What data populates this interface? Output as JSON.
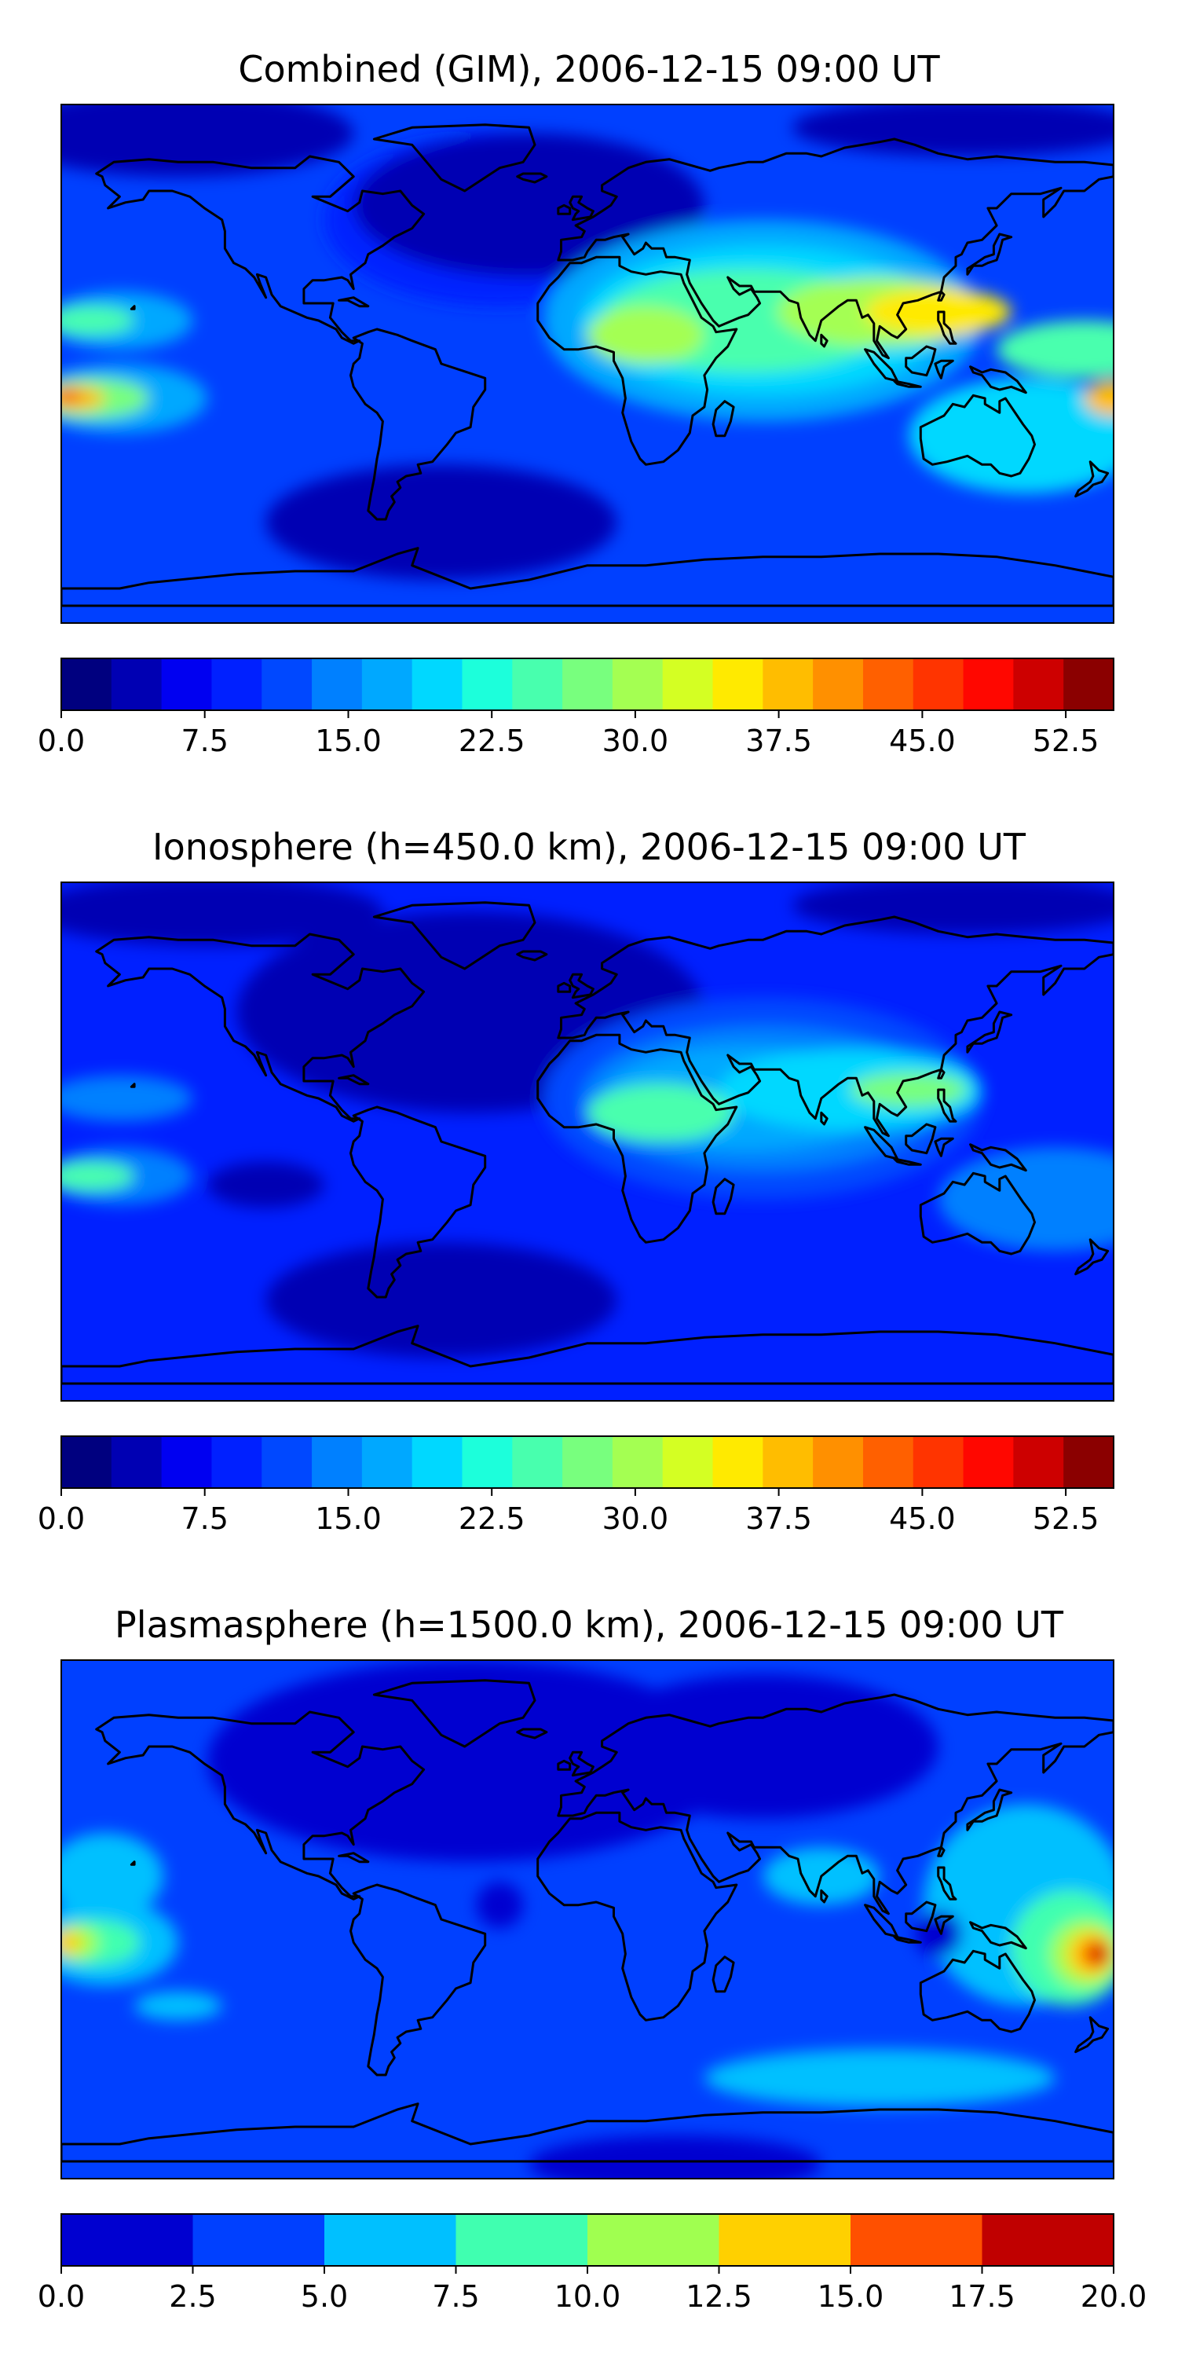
{
  "panels": [
    {
      "title": "Combined (GIM), 2006-12-15 09:00 UT",
      "colorbar": {
        "colors": [
          "#00007f",
          "#0000b3",
          "#0000f1",
          "#0020ff",
          "#0048ff",
          "#0080ff",
          "#00a8ff",
          "#00d8ff",
          "#1cffdb",
          "#48ffae",
          "#78ff7e",
          "#a4ff52",
          "#d4ff23",
          "#ffea00",
          "#ffbd00",
          "#ff9000",
          "#ff6000",
          "#ff3400",
          "#ff0700",
          "#cd0000",
          "#8b0000"
        ],
        "ticks": [
          "0.0",
          "7.5",
          "15.0",
          "22.5",
          "30.0",
          "37.5",
          "45.0",
          "52.5"
        ],
        "tick_values": [
          0,
          7.5,
          15,
          22.5,
          30,
          37.5,
          45,
          52.5
        ],
        "min": 0,
        "max": 55
      },
      "background_color": "#0040ff",
      "blobs": [
        {
          "color": "#0020ff",
          "lon": -30,
          "lat": 50,
          "rx": 60,
          "ry": 30
        },
        {
          "color": "#0000b3",
          "lon": -20,
          "lat": 55,
          "rx": 60,
          "ry": 25
        },
        {
          "color": "#0000b3",
          "lon": -140,
          "lat": 80,
          "rx": 60,
          "ry": 15
        },
        {
          "color": "#0000b3",
          "lon": 130,
          "lat": 82,
          "rx": 60,
          "ry": 10
        },
        {
          "color": "#0000b3",
          "lon": -50,
          "lat": -55,
          "rx": 60,
          "ry": 20
        },
        {
          "color": "#00a8ff",
          "lon": 60,
          "lat": 15,
          "rx": 75,
          "ry": 35
        },
        {
          "color": "#00d8ff",
          "lon": 60,
          "lat": 15,
          "rx": 62,
          "ry": 26
        },
        {
          "color": "#48ffae",
          "lon": 55,
          "lat": 15,
          "rx": 50,
          "ry": 18
        },
        {
          "color": "#a4ff52",
          "lon": 100,
          "lat": 18,
          "rx": 35,
          "ry": 12
        },
        {
          "color": "#ffea00",
          "lon": 120,
          "lat": 18,
          "rx": 25,
          "ry": 8
        },
        {
          "color": "#a4ff52",
          "lon": 20,
          "lat": 10,
          "rx": 20,
          "ry": 10
        },
        {
          "color": "#00d8ff",
          "lon": 150,
          "lat": -25,
          "rx": 40,
          "ry": 20
        },
        {
          "color": "#48ffae",
          "lon": 170,
          "lat": 5,
          "rx": 30,
          "ry": 10
        },
        {
          "color": "#ffbd00",
          "lon": 180,
          "lat": -12,
          "rx": 10,
          "ry": 6
        },
        {
          "color": "#00a8ff",
          "lon": -160,
          "lat": 15,
          "rx": 25,
          "ry": 10
        },
        {
          "color": "#48ffae",
          "lon": -170,
          "lat": 15,
          "rx": 15,
          "ry": 5
        },
        {
          "color": "#00a8ff",
          "lon": -160,
          "lat": -12,
          "rx": 30,
          "ry": 12
        },
        {
          "color": "#78ff7e",
          "lon": -170,
          "lat": -12,
          "rx": 20,
          "ry": 7
        },
        {
          "color": "#ffbd00",
          "lon": -175,
          "lat": -12,
          "rx": 10,
          "ry": 4
        },
        {
          "color": "#ff6000",
          "lon": -178,
          "lat": -11,
          "rx": 5,
          "ry": 3
        }
      ]
    },
    {
      "title": "Ionosphere  (h=450.0 km), 2006-12-15 09:00 UT",
      "colorbar": {
        "colors": [
          "#00007f",
          "#0000b3",
          "#0000f1",
          "#0020ff",
          "#0048ff",
          "#0080ff",
          "#00a8ff",
          "#00d8ff",
          "#1cffdb",
          "#48ffae",
          "#78ff7e",
          "#a4ff52",
          "#d4ff23",
          "#ffea00",
          "#ffbd00",
          "#ff9000",
          "#ff6000",
          "#ff3400",
          "#ff0700",
          "#cd0000",
          "#8b0000"
        ],
        "ticks": [
          "0.0",
          "7.5",
          "15.0",
          "22.5",
          "30.0",
          "37.5",
          "45.0",
          "52.5"
        ],
        "tick_values": [
          0,
          7.5,
          15,
          22.5,
          30,
          37.5,
          45,
          52.5
        ],
        "min": 0,
        "max": 55
      },
      "background_color": "#0020ff",
      "blobs": [
        {
          "color": "#0000b3",
          "lon": -40,
          "lat": 45,
          "rx": 80,
          "ry": 35
        },
        {
          "color": "#0000b3",
          "lon": -130,
          "lat": 80,
          "rx": 60,
          "ry": 12
        },
        {
          "color": "#0000b3",
          "lon": 130,
          "lat": 82,
          "rx": 60,
          "ry": 10
        },
        {
          "color": "#0000b3",
          "lon": -50,
          "lat": -55,
          "rx": 60,
          "ry": 20
        },
        {
          "color": "#0048ff",
          "lon": 60,
          "lat": 15,
          "rx": 75,
          "ry": 35
        },
        {
          "color": "#0080ff",
          "lon": 60,
          "lat": 15,
          "rx": 62,
          "ry": 25
        },
        {
          "color": "#00a8ff",
          "lon": 55,
          "lat": 15,
          "rx": 50,
          "ry": 18
        },
        {
          "color": "#00d8ff",
          "lon": 90,
          "lat": 18,
          "rx": 45,
          "ry": 14
        },
        {
          "color": "#48ffae",
          "lon": 25,
          "lat": 10,
          "rx": 25,
          "ry": 10
        },
        {
          "color": "#78ff7e",
          "lon": 110,
          "lat": 18,
          "rx": 20,
          "ry": 6
        },
        {
          "color": "#0080ff",
          "lon": 160,
          "lat": -20,
          "rx": 40,
          "ry": 18
        },
        {
          "color": "#1cffdb",
          "lon": -175,
          "lat": 15,
          "rx": 8,
          "ry": 4
        },
        {
          "color": "#0080ff",
          "lon": -160,
          "lat": 15,
          "rx": 25,
          "ry": 8
        },
        {
          "color": "#0080ff",
          "lon": -160,
          "lat": -12,
          "rx": 25,
          "ry": 10
        },
        {
          "color": "#48ffae",
          "lon": -170,
          "lat": -12,
          "rx": 15,
          "ry": 5
        },
        {
          "color": "#0000b3",
          "lon": -110,
          "lat": -15,
          "rx": 20,
          "ry": 8
        }
      ]
    },
    {
      "title": "Plasmasphere (h=1500.0 km), 2006-12-15 09:00 UT",
      "colorbar": {
        "colors": [
          "#0000d0",
          "#0040ff",
          "#00c0ff",
          "#40ffb0",
          "#a0ff50",
          "#ffd000",
          "#ff5000",
          "#c00000"
        ],
        "ticks": [
          "0.0",
          "2.5",
          "5.0",
          "7.5",
          "10.0",
          "12.5",
          "15.0",
          "17.5",
          "20.0"
        ],
        "tick_values": [
          0,
          2.5,
          5,
          7.5,
          10,
          12.5,
          15,
          17.5,
          20
        ],
        "min": 0,
        "max": 20
      },
      "background_color": "#0040ff",
      "blobs": [
        {
          "color": "#0000d0",
          "lon": -40,
          "lat": 55,
          "rx": 90,
          "ry": 35
        },
        {
          "color": "#0000d0",
          "lon": 60,
          "lat": 60,
          "rx": 60,
          "ry": 25
        },
        {
          "color": "#0000d0",
          "lon": 30,
          "lat": -85,
          "rx": 50,
          "ry": 10
        },
        {
          "color": "#00c0ff",
          "lon": -165,
          "lat": 15,
          "rx": 20,
          "ry": 15
        },
        {
          "color": "#00c0ff",
          "lon": -165,
          "lat": -8,
          "rx": 25,
          "ry": 15
        },
        {
          "color": "#40ffb0",
          "lon": -168,
          "lat": -8,
          "rx": 15,
          "ry": 8
        },
        {
          "color": "#a0ff50",
          "lon": -175,
          "lat": -8,
          "rx": 8,
          "ry": 6
        },
        {
          "color": "#ffd000",
          "lon": -178,
          "lat": -8,
          "rx": 5,
          "ry": 4
        },
        {
          "color": "#00c0ff",
          "lon": 80,
          "lat": 15,
          "rx": 20,
          "ry": 10
        },
        {
          "color": "#00c0ff",
          "lon": 150,
          "lat": 5,
          "rx": 35,
          "ry": 35
        },
        {
          "color": "#40ffb0",
          "lon": 165,
          "lat": -10,
          "rx": 20,
          "ry": 20
        },
        {
          "color": "#a0ff50",
          "lon": 170,
          "lat": -12,
          "rx": 12,
          "ry": 12
        },
        {
          "color": "#ffd000",
          "lon": 172,
          "lat": -12,
          "rx": 8,
          "ry": 8
        },
        {
          "color": "#ff5000",
          "lon": 174,
          "lat": -12,
          "rx": 5,
          "ry": 5
        },
        {
          "color": "#c00000",
          "lon": 175,
          "lat": -12,
          "rx": 3,
          "ry": 3
        },
        {
          "color": "#00c0ff",
          "lon": -140,
          "lat": -30,
          "rx": 15,
          "ry": 5
        },
        {
          "color": "#00c0ff",
          "lon": 100,
          "lat": -55,
          "rx": 60,
          "ry": 10
        },
        {
          "color": "#0000d0",
          "lon": -30,
          "lat": 5,
          "rx": 8,
          "ry": 8
        },
        {
          "color": "#0000d0",
          "lon": 120,
          "lat": -5,
          "rx": 8,
          "ry": 8
        }
      ]
    }
  ],
  "land_outline_color": "#000000"
}
